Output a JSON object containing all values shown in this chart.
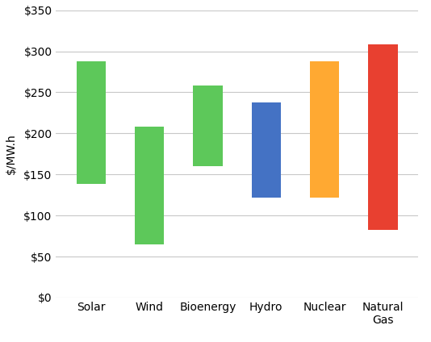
{
  "categories": [
    "Solar",
    "Wind",
    "Bioenergy",
    "Hydro",
    "Nuclear",
    "Natural\nGas"
  ],
  "bar_bottoms": [
    138,
    65,
    160,
    122,
    122,
    82
  ],
  "bar_tops": [
    288,
    208,
    258,
    238,
    288,
    308
  ],
  "bar_colors": [
    "#5DC85A",
    "#5DC85A",
    "#5DC85A",
    "#4472C4",
    "#FFA932",
    "#E84030"
  ],
  "ylabel": "$/MW.h",
  "ylim": [
    0,
    350
  ],
  "yticks": [
    0,
    50,
    100,
    150,
    200,
    250,
    300,
    350
  ],
  "ytick_labels": [
    "$0",
    "$50",
    "$100",
    "$150",
    "$200",
    "$250",
    "$300",
    "$350"
  ],
  "background_color": "#ffffff",
  "grid_color": "#c8c8c8",
  "bar_width": 0.5,
  "tick_fontsize": 10,
  "ylabel_fontsize": 10,
  "xtick_fontsize": 10
}
